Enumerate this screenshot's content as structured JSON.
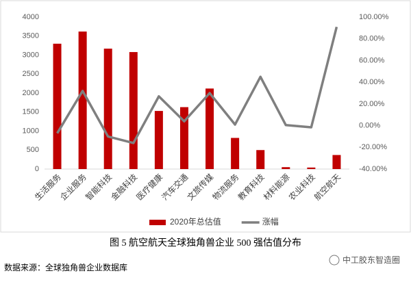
{
  "chart_data": {
    "type": "combo",
    "categories": [
      "生活服务",
      "企业服务",
      "智能科技",
      "金融科技",
      "医疗健康",
      "汽车交通",
      "文旅传媒",
      "物流服务",
      "教育科技",
      "材料能源",
      "农业科技",
      "航空航天"
    ],
    "series": [
      {
        "name": "2020年总估值",
        "type": "bar",
        "color": "#c00000",
        "values": [
          3300,
          3620,
          3170,
          3080,
          1530,
          1630,
          2120,
          820,
          500,
          50,
          40,
          370
        ]
      },
      {
        "name": "涨幅",
        "type": "line",
        "axis": "y2",
        "color": "#7f7f7f",
        "values": [
          -7,
          32,
          -10,
          -16,
          27,
          4,
          30,
          1,
          45,
          0.5,
          -1.5,
          91
        ]
      }
    ],
    "ylim": [
      0,
      4000
    ],
    "yticks": [
      0,
      500,
      1000,
      1500,
      2000,
      2500,
      3000,
      3500,
      4000
    ],
    "y2lim": [
      -40,
      100
    ],
    "y2ticks": [
      {
        "value": -40,
        "label": "-40.00%"
      },
      {
        "value": -20,
        "label": "-20.00%"
      },
      {
        "value": 0,
        "label": "0.00%"
      },
      {
        "value": 20,
        "label": "20.00%"
      },
      {
        "value": 40,
        "label": "40.00%"
      },
      {
        "value": 60,
        "label": "60.00%"
      },
      {
        "value": 80,
        "label": "80.00%"
      },
      {
        "value": 100,
        "label": "100.00%"
      }
    ],
    "grid": false,
    "legend": "bottom"
  },
  "caption": "图 5  航空航天全球独角兽企业 500 强估值分布",
  "source": "数据来源：全球独角兽企业数据库",
  "watermark": "中工胶东智造圈"
}
